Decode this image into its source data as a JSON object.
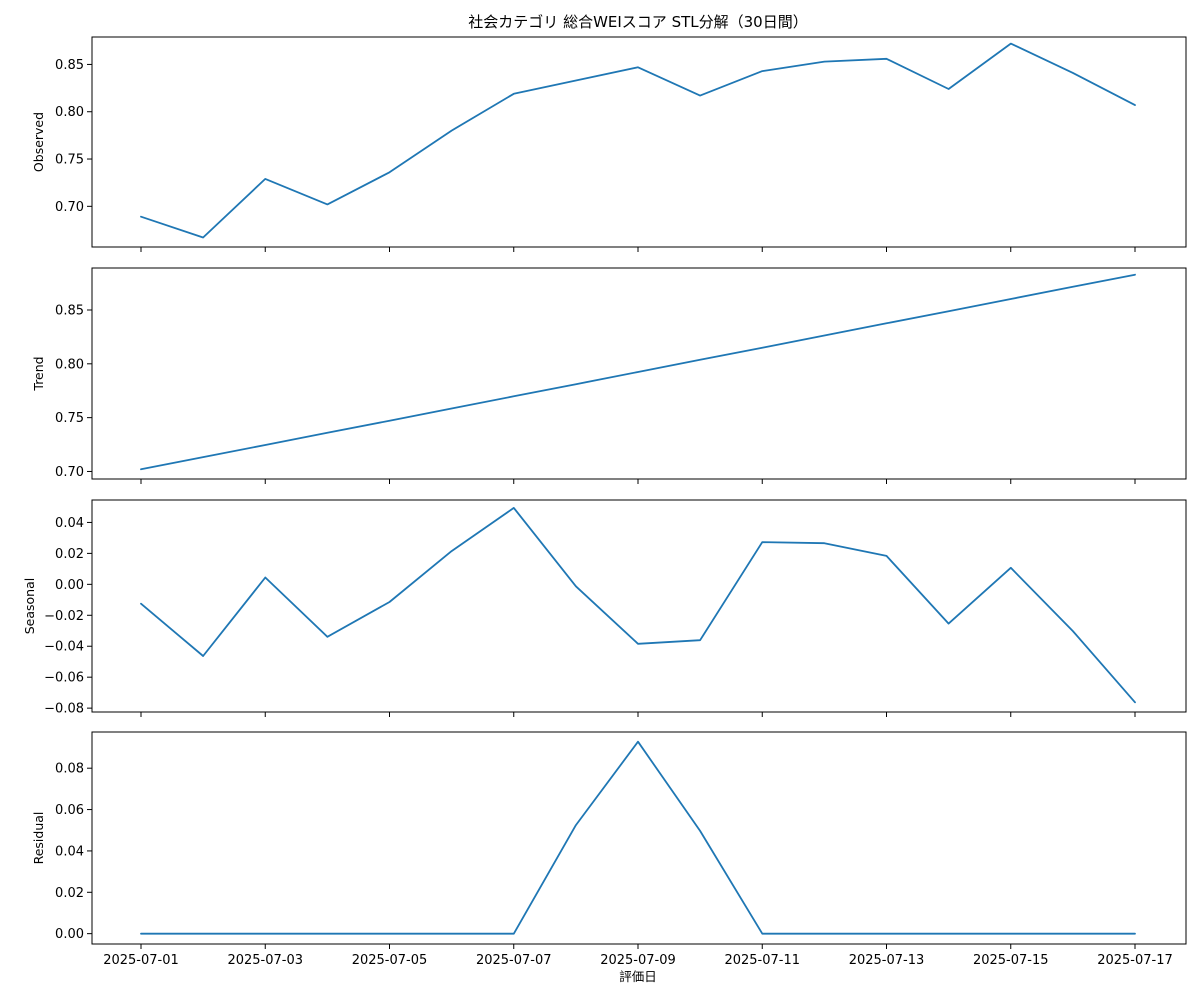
{
  "chart_data": {
    "type": "line",
    "title": "社会カテゴリ 総合WEIスコア STL分解（30日間）",
    "xlabel": "評価日",
    "line_color": "#1f77b4",
    "x": [
      "2025-07-01",
      "2025-07-02",
      "2025-07-03",
      "2025-07-04",
      "2025-07-05",
      "2025-07-06",
      "2025-07-07",
      "2025-07-08",
      "2025-07-09",
      "2025-07-10",
      "2025-07-11",
      "2025-07-12",
      "2025-07-13",
      "2025-07-14",
      "2025-07-15",
      "2025-07-16",
      "2025-07-17"
    ],
    "x_tick_labels": [
      "2025-07-01",
      "2025-07-03",
      "2025-07-05",
      "2025-07-07",
      "2025-07-09",
      "2025-07-11",
      "2025-07-13",
      "2025-07-15",
      "2025-07-17"
    ],
    "panels": [
      {
        "name": "Observed",
        "ylabel": "Observed",
        "ylim": [
          0.657,
          0.879
        ],
        "yticks": [
          0.7,
          0.75,
          0.8,
          0.85
        ],
        "ytick_labels": [
          "0.70",
          "0.75",
          "0.80",
          "0.85"
        ],
        "values": [
          0.689,
          0.667,
          0.729,
          0.702,
          0.736,
          0.78,
          0.819,
          0.833,
          0.847,
          0.817,
          0.843,
          0.853,
          0.856,
          0.824,
          0.872,
          0.841,
          0.807
        ]
      },
      {
        "name": "Trend",
        "ylabel": "Trend",
        "ylim": [
          0.693,
          0.889
        ],
        "yticks": [
          0.7,
          0.75,
          0.8,
          0.85
        ],
        "ytick_labels": [
          "0.70",
          "0.75",
          "0.80",
          "0.85"
        ],
        "values": [
          0.702,
          0.7133,
          0.7246,
          0.7359,
          0.7472,
          0.7585,
          0.7698,
          0.7811,
          0.7924,
          0.8037,
          0.815,
          0.8263,
          0.8376,
          0.8489,
          0.8602,
          0.8715,
          0.8828
        ]
      },
      {
        "name": "Seasonal",
        "ylabel": "Seasonal",
        "ylim": [
          -0.0825,
          0.0545
        ],
        "yticks": [
          -0.08,
          -0.06,
          -0.04,
          -0.02,
          0.0,
          0.02,
          0.04
        ],
        "ytick_labels": [
          "−0.08",
          "−0.06",
          "−0.04",
          "−0.02",
          "0.00",
          "0.02",
          "0.04"
        ],
        "values": [
          -0.0125,
          -0.0463,
          0.0044,
          -0.0339,
          -0.0114,
          0.0215,
          0.0494,
          -0.0013,
          -0.0384,
          -0.0361,
          0.0273,
          0.0266,
          0.0184,
          -0.0254,
          0.0107,
          -0.0302,
          -0.0762
        ]
      },
      {
        "name": "Residual",
        "ylabel": "Residual",
        "ylim": [
          -0.005,
          0.0975
        ],
        "yticks": [
          0.0,
          0.02,
          0.04,
          0.06,
          0.08
        ],
        "ytick_labels": [
          "0.00",
          "0.02",
          "0.04",
          "0.06",
          "0.08"
        ],
        "values": [
          0,
          0,
          0,
          0,
          0,
          0,
          0,
          0.0525,
          0.0928,
          0.0497,
          0,
          0,
          0,
          0,
          0,
          0,
          0
        ]
      }
    ]
  }
}
